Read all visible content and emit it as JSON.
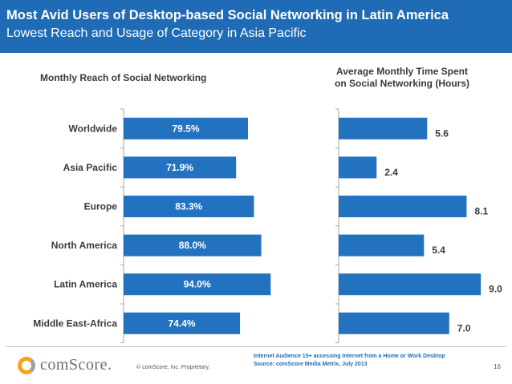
{
  "header": {
    "title": "Most Avid Users of Desktop-based Social Networking in Latin America",
    "subtitle": "Lowest Reach and Usage of Category in Asia Pacific",
    "background_color": "#1f6bb5"
  },
  "chart_data": [
    {
      "type": "bar",
      "orientation": "horizontal",
      "title": "Monthly Reach of Social Networking",
      "categories": [
        "Worldwide",
        "Asia Pacific",
        "Europe",
        "North America",
        "Latin America",
        "Middle East-Africa"
      ],
      "values": [
        79.5,
        71.9,
        83.3,
        88.0,
        94.0,
        74.4
      ],
      "value_labels": [
        "79.5%",
        "71.9%",
        "83.3%",
        "88.0%",
        "94.0%",
        "74.4%"
      ],
      "unit": "%",
      "xlim": [
        0,
        100
      ],
      "bar_color": "#2372bf"
    },
    {
      "type": "bar",
      "orientation": "horizontal",
      "title": "Average Monthly Time Spent on Social Networking (Hours)",
      "title_lines": [
        "Average Monthly Time Spent",
        "on Social Networking (Hours)"
      ],
      "categories": [
        "Worldwide",
        "Asia Pacific",
        "Europe",
        "North America",
        "Latin America",
        "Middle East-Africa"
      ],
      "values": [
        5.6,
        2.4,
        8.1,
        5.4,
        9.0,
        7.0
      ],
      "value_labels": [
        "5.6",
        "2.4",
        "8.1",
        "5.4",
        "9.0",
        "7.0"
      ],
      "unit": "Hours",
      "xlim": [
        0,
        9.5
      ],
      "bar_color": "#2372bf"
    }
  ],
  "footer": {
    "logo_text": "comScore.",
    "copyright": "© comScore, Inc.    Proprietary.",
    "note_line1": "Internet Audience 15+ accessing Internet from a Home or Work Desktop",
    "note_line2": "Source:  comScore Media Metrix, July 2013",
    "page_number": "16"
  }
}
